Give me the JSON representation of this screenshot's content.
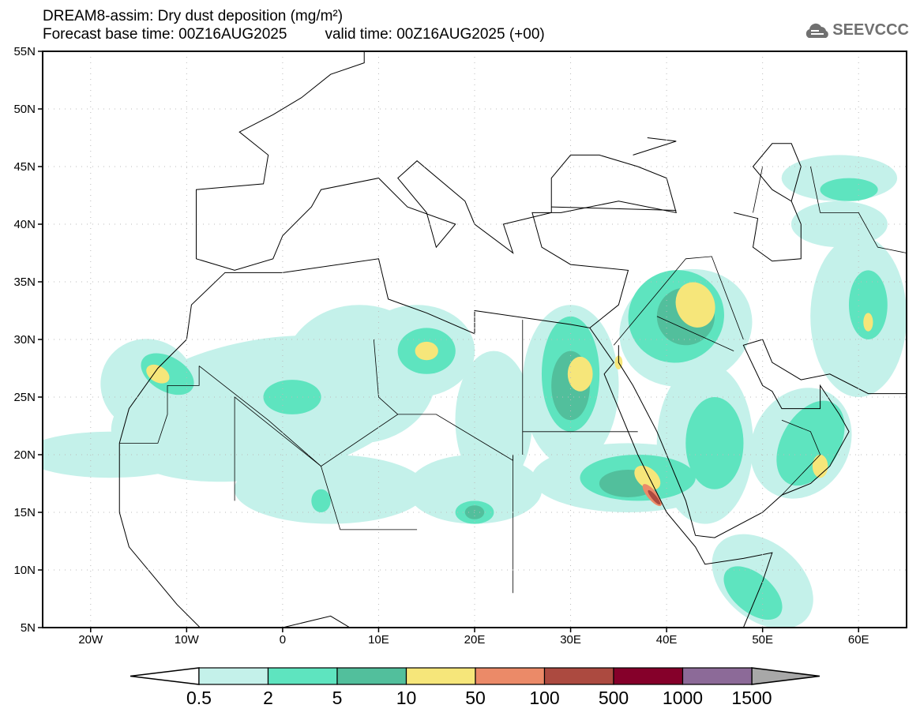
{
  "header": {
    "title": "DREAM8-assim: Dry dust deposition (mg/m²)",
    "base_time": "Forecast base time: 00Z16AUG2025",
    "valid_time": "valid time: 00Z16AUG2025 (+00)",
    "logo": "SEEVCCC"
  },
  "map": {
    "lon_range": [
      -25,
      65
    ],
    "lat_range": [
      5,
      55
    ],
    "lat_ticks": [
      {
        "value": 55,
        "label": "55N"
      },
      {
        "value": 50,
        "label": "50N"
      },
      {
        "value": 45,
        "label": "45N"
      },
      {
        "value": 40,
        "label": "40N"
      },
      {
        "value": 35,
        "label": "35N"
      },
      {
        "value": 30,
        "label": "30N"
      },
      {
        "value": 25,
        "label": "25N"
      },
      {
        "value": 20,
        "label": "20N"
      },
      {
        "value": 15,
        "label": "15N"
      },
      {
        "value": 10,
        "label": "10N"
      },
      {
        "value": 5,
        "label": "5N"
      }
    ],
    "lon_ticks": [
      {
        "value": -20,
        "label": "20W"
      },
      {
        "value": -10,
        "label": "10W"
      },
      {
        "value": 0,
        "label": "0"
      },
      {
        "value": 10,
        "label": "10E"
      },
      {
        "value": 20,
        "label": "20E"
      },
      {
        "value": 30,
        "label": "30E"
      },
      {
        "value": 40,
        "label": "40E"
      },
      {
        "value": 50,
        "label": "50E"
      },
      {
        "value": 60,
        "label": "60E"
      }
    ]
  },
  "colorbar": {
    "labels": [
      "0.5",
      "2",
      "5",
      "10",
      "50",
      "100",
      "500",
      "1000",
      "1500"
    ],
    "colors": [
      "#c4f1ea",
      "#5ee4bf",
      "#52bf9c",
      "#f6e67a",
      "#eb8a68",
      "#ac4a40",
      "#85002a",
      "#8c6a98"
    ],
    "under_color": "#ffffff",
    "over_color": "#a8a8a8"
  }
}
